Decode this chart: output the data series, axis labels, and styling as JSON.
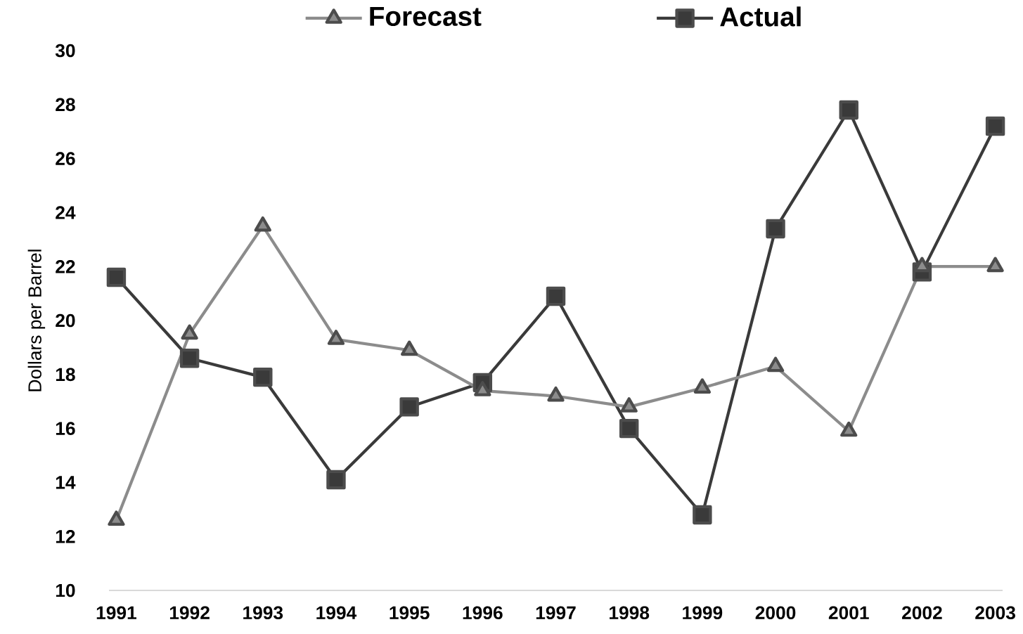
{
  "chart_data": {
    "type": "line",
    "ylabel": "Dollars per Barrel",
    "categories": [
      "1991",
      "1992",
      "1993",
      "1994",
      "1995",
      "1996",
      "1997",
      "1998",
      "1999",
      "2000",
      "2001",
      "2002",
      "2003"
    ],
    "series": [
      {
        "name": "Forecast",
        "color": "#8c8c8c",
        "marker": "triangle",
        "values": [
          12.6,
          19.5,
          23.5,
          19.3,
          18.9,
          17.4,
          17.2,
          16.8,
          17.5,
          18.3,
          15.9,
          22.0,
          22.0
        ]
      },
      {
        "name": "Actual",
        "color": "#3a3a3a",
        "marker": "square",
        "values": [
          21.6,
          18.6,
          17.9,
          14.1,
          16.8,
          17.7,
          20.9,
          16.0,
          12.8,
          23.4,
          27.8,
          21.8,
          27.2
        ]
      }
    ],
    "ylim": [
      10,
      30
    ],
    "yticks": [
      10,
      12,
      14,
      16,
      18,
      20,
      22,
      24,
      26,
      28,
      30
    ],
    "grid": false,
    "legend": "top",
    "line_style": "solid"
  }
}
